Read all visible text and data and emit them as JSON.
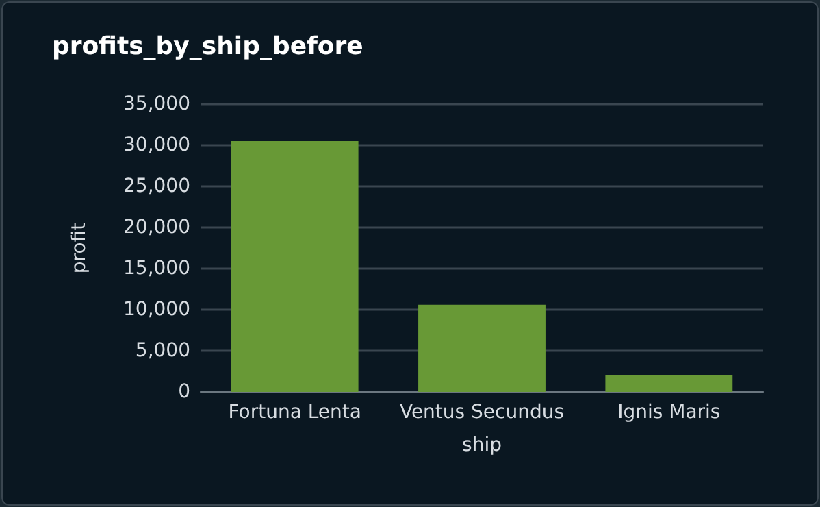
{
  "chart_data": {
    "type": "bar",
    "title": "profits_by_ship_before",
    "xlabel": "ship",
    "ylabel": "profit",
    "categories": [
      "Fortuna Lenta",
      "Ventus Secundus",
      "Ignis Maris"
    ],
    "values": [
      30500,
      10600,
      2000
    ],
    "color": "#689936",
    "ylim": [
      0,
      35000
    ],
    "yticks": [
      0,
      {
        "value": 5000,
        "label": "5,000"
      },
      {
        "value": 10000,
        "label": "10,000"
      },
      {
        "value": 15000,
        "label": "15,000"
      },
      {
        "value": 20000,
        "label": "20,000"
      },
      {
        "value": 25000,
        "label": "25,000"
      },
      {
        "value": 30000,
        "label": "30,000"
      },
      {
        "value": 35000,
        "label": "35,000"
      }
    ],
    "grid": "y"
  }
}
